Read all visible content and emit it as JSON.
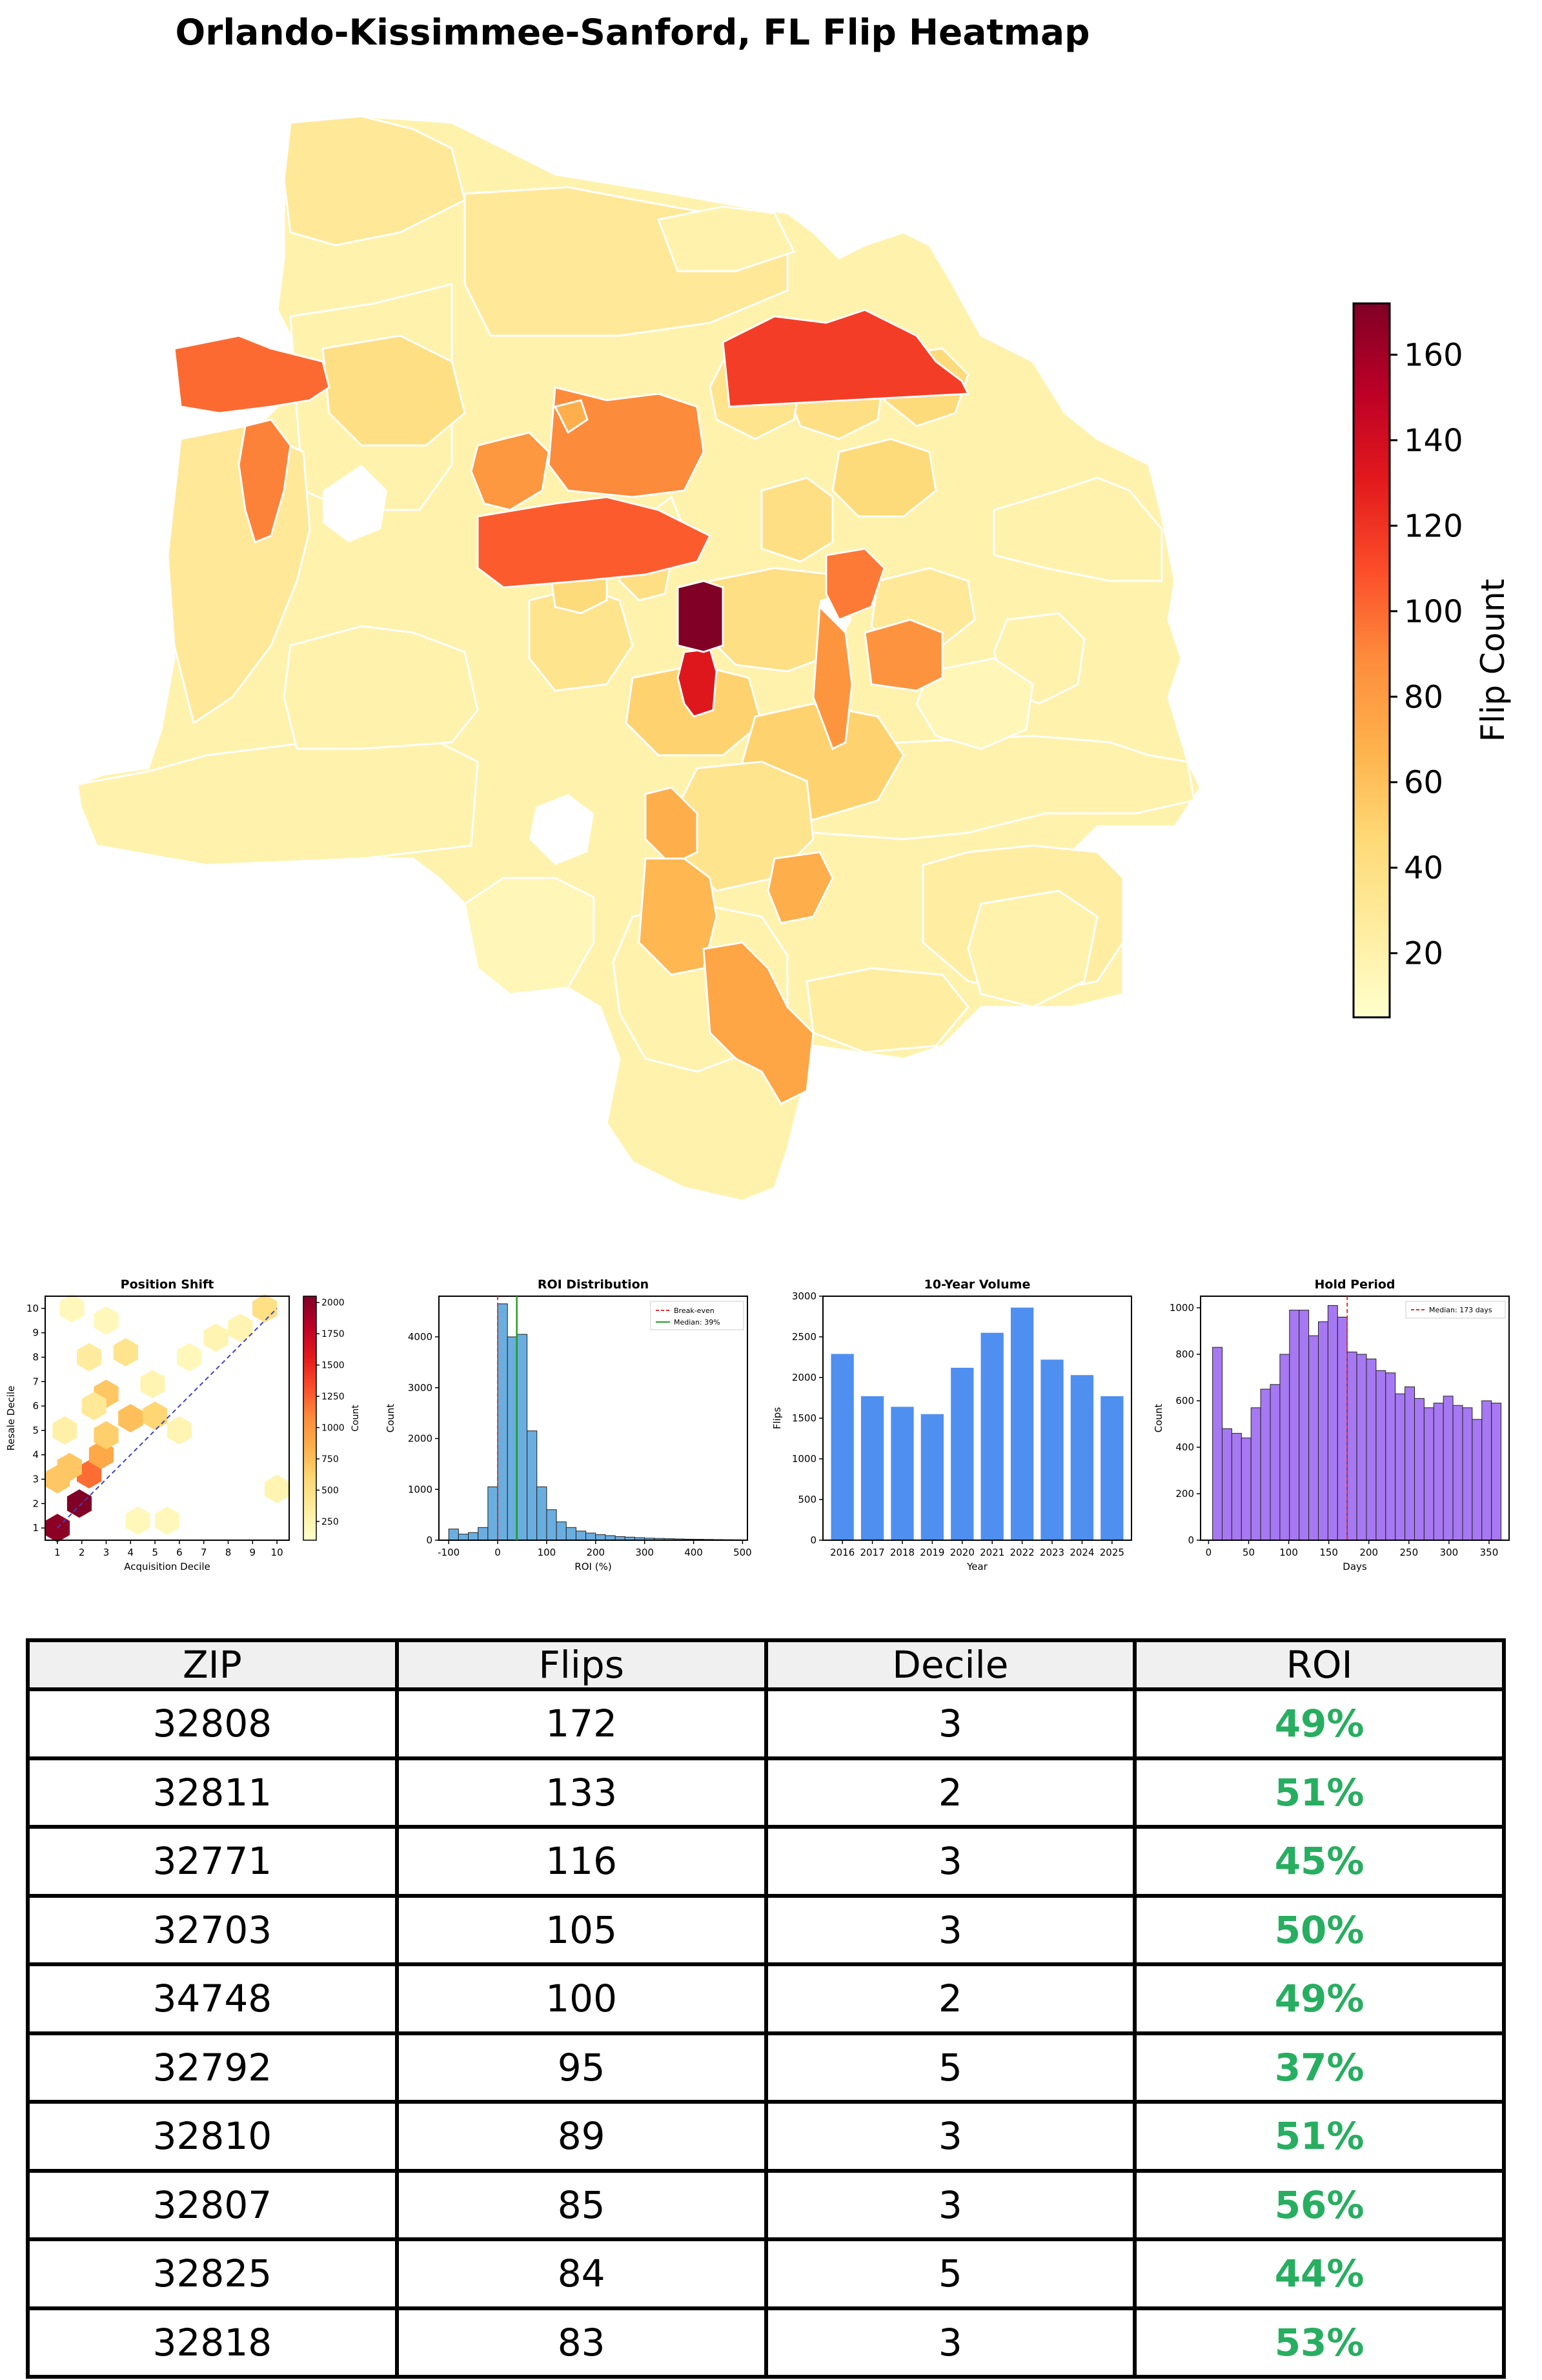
{
  "title": "Orlando-Kissimmee-Sanford, FL Flip Heatmap",
  "colors": {
    "scale": [
      "#ffffcc",
      "#ffeda0",
      "#fed976",
      "#feb24c",
      "#fd8d3c",
      "#fc4e2a",
      "#e31a1c",
      "#bd0026",
      "#800026"
    ],
    "volume_bar": "#4f8ff0",
    "roi_bar": "#6aaee0",
    "hold_bar": "#a678f2",
    "breakeven_line": "#e03030",
    "median_line_roi": "#22a022",
    "median_line_hold": "#e03030",
    "roi_positive": "#27ae60"
  },
  "chart_data": [
    {
      "type": "choropleth",
      "title": "Orlando-Kissimmee-Sanford, FL Flip Heatmap",
      "colorbar": {
        "label": "Flip Count",
        "min": 5,
        "max": 172,
        "ticks": [
          20,
          40,
          60,
          80,
          100,
          120,
          140,
          160
        ]
      },
      "regions": [
        {
          "zip": "32808",
          "flips": 172
        },
        {
          "zip": "32811",
          "flips": 133
        },
        {
          "zip": "32771",
          "flips": 116
        },
        {
          "zip": "32703",
          "flips": 105
        },
        {
          "zip": "34748",
          "flips": 100
        },
        {
          "zip": "32792",
          "flips": 95
        },
        {
          "zip": "32810",
          "flips": 89
        },
        {
          "zip": "32807",
          "flips": 85
        },
        {
          "zip": "32825",
          "flips": 84
        },
        {
          "zip": "32818",
          "flips": 83
        }
      ]
    },
    {
      "type": "heatmap",
      "title": "Position Shift",
      "xlabel": "Acquisition Decile",
      "ylabel": "Resale Decile",
      "x_ticks": [
        1,
        2,
        3,
        4,
        5,
        6,
        7,
        8,
        9,
        10
      ],
      "y_ticks": [
        1,
        2,
        3,
        4,
        5,
        6,
        7,
        8,
        9,
        10
      ],
      "colorbar": {
        "label": "Count",
        "min": 100,
        "max": 2050,
        "ticks": [
          250,
          500,
          750,
          1000,
          1250,
          1500,
          1750,
          2000
        ]
      },
      "cells": [
        {
          "x": 1,
          "y": 1,
          "count": 2000
        },
        {
          "x": 1.9,
          "y": 2,
          "count": 2050
        },
        {
          "x": 2.3,
          "y": 3.2,
          "count": 1200
        },
        {
          "x": 1.5,
          "y": 3.5,
          "count": 700
        },
        {
          "x": 2.8,
          "y": 4,
          "count": 900
        },
        {
          "x": 3,
          "y": 4.8,
          "count": 650
        },
        {
          "x": 3,
          "y": 6.5,
          "count": 700
        },
        {
          "x": 4,
          "y": 5.5,
          "count": 750
        },
        {
          "x": 5,
          "y": 5.6,
          "count": 600
        },
        {
          "x": 3.8,
          "y": 8.2,
          "count": 450
        },
        {
          "x": 2.3,
          "y": 8,
          "count": 350
        },
        {
          "x": 2.5,
          "y": 6,
          "count": 400
        },
        {
          "x": 1.3,
          "y": 5,
          "count": 300
        },
        {
          "x": 1,
          "y": 3,
          "count": 700
        },
        {
          "x": 4.9,
          "y": 6.9,
          "count": 250
        },
        {
          "x": 6,
          "y": 5,
          "count": 250
        },
        {
          "x": 6.4,
          "y": 8,
          "count": 200
        },
        {
          "x": 7.5,
          "y": 8.8,
          "count": 250
        },
        {
          "x": 8.5,
          "y": 9.2,
          "count": 250
        },
        {
          "x": 9.5,
          "y": 10,
          "count": 500
        },
        {
          "x": 4.3,
          "y": 1.3,
          "count": 200
        },
        {
          "x": 5.5,
          "y": 1.3,
          "count": 200
        },
        {
          "x": 10,
          "y": 2.6,
          "count": 250
        },
        {
          "x": 1.6,
          "y": 10,
          "count": 200
        },
        {
          "x": 3,
          "y": 9.5,
          "count": 200
        }
      ],
      "reference_line": "y = x"
    },
    {
      "type": "bar",
      "title": "ROI Distribution",
      "xlabel": "ROI (%)",
      "ylabel": "Count",
      "xlim": [
        -120,
        510
      ],
      "ylim": [
        0,
        4800
      ],
      "x_ticks": [
        -100,
        0,
        100,
        200,
        300,
        400,
        500
      ],
      "y_ticks": [
        0,
        1000,
        2000,
        3000,
        4000
      ],
      "bin_width": 20,
      "bin_starts": [
        -100,
        -80,
        -60,
        -40,
        -20,
        0,
        20,
        40,
        60,
        80,
        100,
        120,
        140,
        160,
        180,
        200,
        220,
        240,
        260,
        280,
        300,
        320,
        340,
        360,
        380,
        400,
        420,
        440,
        460,
        480
      ],
      "values": [
        220,
        120,
        150,
        250,
        1050,
        4650,
        4000,
        4050,
        2150,
        1050,
        600,
        360,
        250,
        180,
        140,
        110,
        90,
        70,
        60,
        50,
        40,
        35,
        30,
        25,
        20,
        18,
        15,
        12,
        10,
        8
      ],
      "legend": [
        "Break-even",
        "Median: 39%"
      ],
      "breakeven": 0,
      "median": 39
    },
    {
      "type": "bar",
      "title": "10-Year Volume",
      "xlabel": "Year",
      "ylabel": "Flips",
      "categories": [
        "2016",
        "2017",
        "2018",
        "2019",
        "2020",
        "2021",
        "2022",
        "2023",
        "2024",
        "2025"
      ],
      "values": [
        2290,
        1770,
        1640,
        1550,
        2120,
        2550,
        2860,
        2220,
        2030,
        1770
      ],
      "ylim": [
        0,
        3000
      ],
      "y_ticks": [
        0,
        500,
        1000,
        1500,
        2000,
        2500,
        3000
      ]
    },
    {
      "type": "bar",
      "title": "Hold Period",
      "xlabel": "Days",
      "ylabel": "Count",
      "xlim": [
        -10,
        375
      ],
      "ylim": [
        0,
        1050
      ],
      "x_ticks": [
        0,
        50,
        100,
        150,
        200,
        250,
        300,
        350
      ],
      "y_ticks": [
        0,
        200,
        400,
        600,
        800,
        1000
      ],
      "bin_width": 12,
      "bin_starts": [
        5,
        17,
        29,
        41,
        53,
        65,
        77,
        89,
        101,
        113,
        125,
        137,
        149,
        161,
        173,
        185,
        197,
        209,
        221,
        233,
        245,
        257,
        269,
        281,
        293,
        305,
        317,
        329,
        341,
        353
      ],
      "values": [
        830,
        480,
        460,
        440,
        570,
        650,
        670,
        800,
        990,
        990,
        880,
        940,
        1010,
        960,
        810,
        800,
        780,
        730,
        720,
        630,
        660,
        610,
        570,
        590,
        620,
        580,
        570,
        520,
        600,
        590
      ],
      "legend": [
        "Median: 173 days"
      ],
      "median": 173
    },
    {
      "type": "table",
      "columns": [
        "ZIP",
        "Flips",
        "Decile",
        "ROI"
      ],
      "rows": [
        [
          "32808",
          "172",
          "3",
          "49%"
        ],
        [
          "32811",
          "133",
          "2",
          "51%"
        ],
        [
          "32771",
          "116",
          "3",
          "45%"
        ],
        [
          "32703",
          "105",
          "3",
          "50%"
        ],
        [
          "34748",
          "100",
          "2",
          "49%"
        ],
        [
          "32792",
          "95",
          "5",
          "37%"
        ],
        [
          "32810",
          "89",
          "3",
          "51%"
        ],
        [
          "32807",
          "85",
          "3",
          "56%"
        ],
        [
          "32825",
          "84",
          "5",
          "44%"
        ],
        [
          "32818",
          "83",
          "3",
          "53%"
        ]
      ]
    }
  ]
}
